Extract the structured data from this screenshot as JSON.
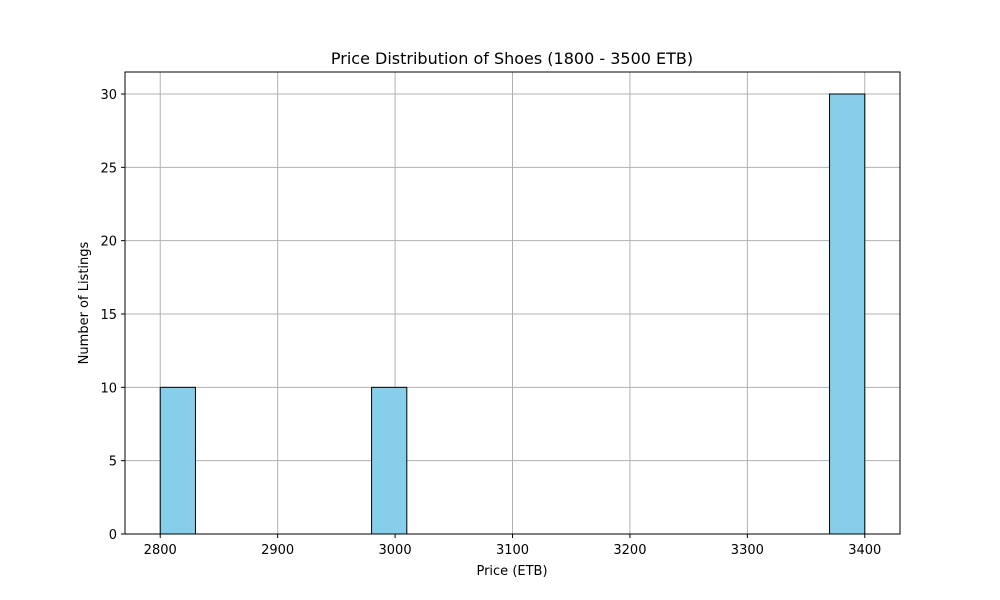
{
  "chart_data": {
    "type": "bar",
    "title": "Price Distribution of Shoes (1800 - 3500 ETB)",
    "xlabel": "Price (ETB)",
    "ylabel": "Number of Listings",
    "xlim": [
      2770,
      3430
    ],
    "ylim": [
      0,
      31.5
    ],
    "grid": true,
    "bar_color": "#87CEEB",
    "edge_color": "#000000",
    "grid_color": "#b0b0b0",
    "bins": [
      {
        "start": 2800,
        "end": 2830,
        "count": 10
      },
      {
        "start": 2980,
        "end": 3010,
        "count": 10
      },
      {
        "start": 3370,
        "end": 3400,
        "count": 30
      }
    ],
    "xticks": [
      2800,
      2900,
      3000,
      3100,
      3200,
      3300,
      3400
    ],
    "yticks": [
      0,
      5,
      10,
      15,
      20,
      25,
      30
    ]
  }
}
